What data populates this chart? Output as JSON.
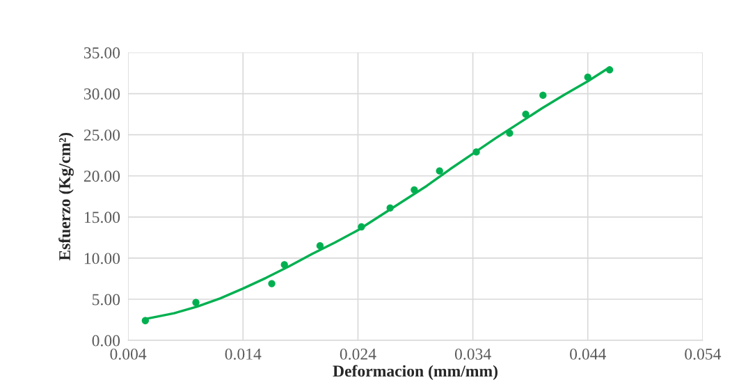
{
  "chart_data": {
    "type": "scatter",
    "xlabel": "Deformacion (mm/mm)",
    "ylabel": "Esfuerzo (Kg/cm²)",
    "xlim": [
      0.004,
      0.054
    ],
    "xticks": [
      0.004,
      0.014,
      0.024,
      0.034,
      0.044,
      0.054
    ],
    "ylim": [
      0,
      35
    ],
    "yticks": [
      {
        "value": 0,
        "label": "0.00"
      },
      {
        "value": 5,
        "label": "5.00"
      },
      {
        "value": 10,
        "label": "10.00"
      },
      {
        "value": 15,
        "label": "15.00"
      },
      {
        "value": 20,
        "label": "20.00"
      },
      {
        "value": 25,
        "label": "25.00"
      },
      {
        "value": 30,
        "label": "30.00"
      },
      {
        "value": 35,
        "label": "35.00"
      }
    ],
    "grid": true,
    "marker": "circle",
    "series": [
      {
        "color": "#00b050",
        "x": [
          0.0055,
          0.0099,
          0.0165,
          0.0176,
          0.0207,
          0.0243,
          0.0268,
          0.0289,
          0.0311,
          0.0343,
          0.0372,
          0.0386,
          0.0401,
          0.044,
          0.0459
        ],
        "values": [
          2.4,
          4.6,
          6.9,
          9.2,
          11.5,
          13.8,
          16.1,
          18.3,
          20.6,
          22.9,
          25.2,
          27.5,
          29.8,
          32.0,
          32.9
        ]
      },
      {
        "type": "line",
        "color": "#00b050",
        "marker": "none",
        "x": [
          0.0055,
          0.008,
          0.01,
          0.012,
          0.014,
          0.016,
          0.018,
          0.02,
          0.022,
          0.024,
          0.026,
          0.028,
          0.03,
          0.032,
          0.034,
          0.036,
          0.038,
          0.04,
          0.042,
          0.044,
          0.0459
        ],
        "values": [
          2.6,
          3.3,
          4.1,
          5.1,
          6.3,
          7.6,
          9.0,
          10.5,
          11.9,
          13.4,
          15.2,
          17.0,
          18.8,
          20.8,
          22.7,
          24.6,
          26.4,
          28.2,
          29.9,
          31.5,
          33.2
        ]
      }
    ]
  }
}
